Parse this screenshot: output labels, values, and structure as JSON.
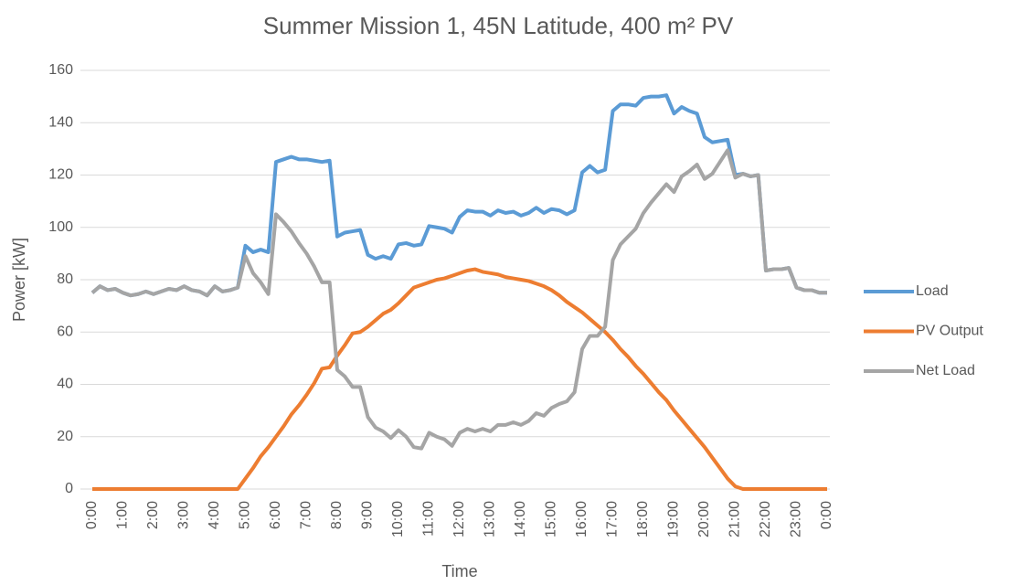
{
  "chart_data": {
    "type": "line",
    "title": "Summer Mission 1, 45N Latitude, 400 m² PV",
    "x_label": "Time",
    "y_label": "Power [kW]",
    "categories": [
      "0:00",
      null,
      null,
      null,
      "1:00",
      null,
      null,
      null,
      "2:00",
      null,
      null,
      null,
      "3:00",
      null,
      null,
      null,
      "4:00",
      null,
      null,
      null,
      "5:00",
      null,
      null,
      null,
      "6:00",
      null,
      null,
      null,
      "7:00",
      null,
      null,
      null,
      "8:00",
      null,
      null,
      null,
      "9:00",
      null,
      null,
      null,
      "10:00",
      null,
      null,
      null,
      "11:00",
      null,
      null,
      null,
      "12:00",
      null,
      null,
      null,
      "13:00",
      null,
      null,
      null,
      "14:00",
      null,
      null,
      null,
      "15:00",
      null,
      null,
      null,
      "16:00",
      null,
      null,
      null,
      "17:00",
      null,
      null,
      null,
      "18:00",
      null,
      null,
      null,
      "19:00",
      null,
      null,
      null,
      "20:00",
      null,
      null,
      null,
      "21:00",
      null,
      null,
      null,
      "22:00",
      null,
      null,
      null,
      "23:00",
      null,
      null,
      null,
      "0:00"
    ],
    "series": [
      {
        "name": "Load",
        "color": "#5b9bd5",
        "values": [
          75,
          77.5,
          76,
          76.5,
          75,
          74,
          74.5,
          75.5,
          74.5,
          75.5,
          76.5,
          76,
          77.5,
          76,
          75.5,
          74,
          77.5,
          75.5,
          76,
          77,
          93,
          90.5,
          91.5,
          90.5,
          125,
          126,
          127,
          126,
          126,
          125.5,
          125,
          125.5,
          96.5,
          98,
          98.5,
          99,
          89.5,
          88,
          89,
          88,
          93.5,
          94,
          93,
          93.5,
          100.5,
          100,
          99.5,
          98,
          104,
          106.5,
          106,
          106,
          104.5,
          106.5,
          105.5,
          106,
          104.5,
          105.5,
          107.5,
          105.5,
          107,
          106.5,
          105,
          106.5,
          121,
          123.5,
          121,
          122,
          144.5,
          147,
          147,
          146.5,
          149.5,
          150,
          150,
          150.5,
          143.5,
          146,
          144.5,
          143.5,
          134.5,
          132.5,
          133,
          133.5,
          120,
          120.5,
          119.5,
          120,
          83.5,
          84,
          84,
          84.5,
          77,
          76,
          76,
          75,
          75
        ]
      },
      {
        "name": "PV Output",
        "color": "#ed7d31",
        "values": [
          0,
          0,
          0,
          0,
          0,
          0,
          0,
          0,
          0,
          0,
          0,
          0,
          0,
          0,
          0,
          0,
          0,
          0,
          0,
          0,
          4,
          8,
          12.5,
          16,
          20,
          24,
          28.5,
          32,
          36,
          40.5,
          46,
          46.5,
          51,
          55,
          59.5,
          60,
          62,
          64.5,
          67,
          68.5,
          71,
          74,
          77,
          78,
          79,
          80,
          80.5,
          81.5,
          82.5,
          83.5,
          84,
          83,
          82.5,
          82,
          81,
          80.5,
          80,
          79.5,
          78.5,
          77.5,
          76,
          74,
          71.5,
          69.5,
          67.5,
          65,
          62.5,
          60,
          57,
          53.5,
          50.5,
          47,
          44,
          40.5,
          37,
          34,
          30,
          26.5,
          23,
          19.5,
          16,
          12,
          8,
          4,
          1,
          0,
          0,
          0,
          0,
          0,
          0,
          0,
          0,
          0,
          0,
          0,
          0
        ]
      },
      {
        "name": "Net Load",
        "color": "#a5a5a5",
        "values": [
          75,
          77.5,
          76,
          76.5,
          75,
          74,
          74.5,
          75.5,
          74.5,
          75.5,
          76.5,
          76,
          77.5,
          76,
          75.5,
          74,
          77.5,
          75.5,
          76,
          77,
          89,
          82.5,
          79,
          74.5,
          105,
          102,
          98.5,
          94,
          90,
          85,
          79,
          79,
          45.5,
          43,
          39,
          39,
          27.5,
          23.5,
          22,
          19.5,
          22.5,
          20,
          16,
          15.5,
          21.5,
          20,
          19,
          16.5,
          21.5,
          23,
          22,
          23,
          22,
          24.5,
          24.5,
          25.5,
          24.5,
          26,
          29,
          28,
          31,
          32.5,
          33.5,
          37,
          53.5,
          58.5,
          58.5,
          62,
          87.5,
          93.5,
          96.5,
          99.5,
          105.5,
          109.5,
          113,
          116.5,
          113.5,
          119.5,
          121.5,
          124,
          118.5,
          120.5,
          125,
          129.5,
          119,
          120.5,
          119.5,
          120,
          83.5,
          84,
          84,
          84.5,
          77,
          76,
          76,
          75,
          75
        ]
      }
    ],
    "ylim": [
      0,
      160
    ],
    "yticks": [
      0,
      20,
      40,
      60,
      80,
      100,
      120,
      140,
      160
    ],
    "grid": true,
    "legend": "right"
  }
}
